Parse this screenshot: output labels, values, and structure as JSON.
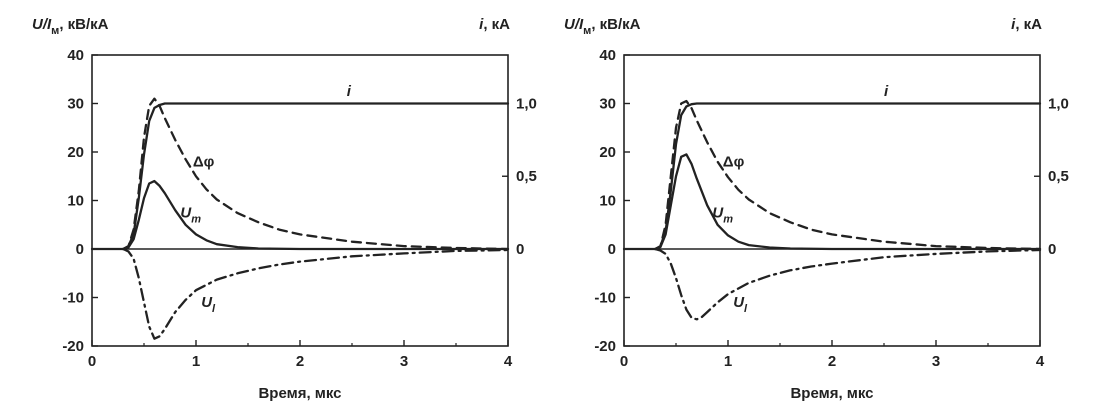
{
  "chart_data": [
    {
      "type": "line",
      "xlabel": "Время, мкс",
      "ylabel_left": {
        "main": "U/I",
        "sub": "м",
        "tail": ", кВ/кА"
      },
      "ylabel_right": {
        "main": "i",
        "tail": ", кА"
      },
      "xlim": [
        0,
        4
      ],
      "ylim_left": [
        -20,
        40
      ],
      "ylim_right": [
        -0.6667,
        1.3333
      ],
      "x_ticks": [
        "0",
        "1",
        "2",
        "3",
        "4"
      ],
      "y_ticks_left": [
        "40",
        "30",
        "20",
        "10",
        "0",
        "-10",
        "-20"
      ],
      "y_ticks_right": [
        "1,0",
        "0,5",
        "0"
      ],
      "grid": false,
      "series": [
        {
          "name": "i",
          "axis": "right",
          "style": "solid",
          "color": "#222222",
          "x": [
            0,
            0.3,
            0.35,
            0.4,
            0.45,
            0.5,
            0.55,
            0.6,
            0.65,
            0.7,
            0.8,
            0.9,
            1.0,
            4.0
          ],
          "y": [
            0,
            0,
            0.02,
            0.1,
            0.35,
            0.65,
            0.88,
            0.97,
            0.99,
            1.0,
            1.0,
            1.0,
            1.0,
            1.0
          ]
        },
        {
          "name": "Δφ",
          "axis": "left",
          "style": "dashed",
          "color": "#222222",
          "x": [
            0.3,
            0.35,
            0.4,
            0.45,
            0.5,
            0.55,
            0.6,
            0.65,
            0.7,
            0.8,
            0.9,
            1.0,
            1.1,
            1.2,
            1.4,
            1.6,
            1.8,
            2.0,
            2.5,
            3.0,
            3.5,
            4.0
          ],
          "y": [
            0,
            0.5,
            4,
            12,
            23,
            29.5,
            31,
            29.5,
            27,
            22.5,
            18.5,
            15,
            12.3,
            10.2,
            7.4,
            5.5,
            4,
            3,
            1.5,
            0.6,
            0.2,
            0
          ]
        },
        {
          "name": "U_т",
          "axis": "left",
          "style": "solid",
          "color": "#222222",
          "x": [
            0.3,
            0.35,
            0.4,
            0.45,
            0.5,
            0.55,
            0.6,
            0.65,
            0.7,
            0.8,
            0.9,
            1.0,
            1.1,
            1.2,
            1.4,
            1.6,
            2.0,
            4.0
          ],
          "y": [
            0,
            0.3,
            2,
            6,
            10.5,
            13.5,
            14,
            13,
            11.5,
            8,
            5,
            3,
            1.8,
            1,
            0.4,
            0.1,
            0,
            0
          ]
        },
        {
          "name": "U_l",
          "axis": "left",
          "style": "dashdot",
          "color": "#222222",
          "x": [
            0.3,
            0.35,
            0.4,
            0.45,
            0.5,
            0.55,
            0.6,
            0.65,
            0.7,
            0.8,
            0.9,
            1.0,
            1.2,
            1.4,
            1.6,
            1.8,
            2.0,
            2.5,
            3.0,
            3.5,
            4.0
          ],
          "y": [
            0,
            -0.5,
            -2,
            -6,
            -11,
            -16,
            -18.5,
            -18,
            -16.5,
            -13,
            -10.5,
            -8.5,
            -6.3,
            -5,
            -4,
            -3.2,
            -2.6,
            -1.5,
            -0.9,
            -0.4,
            -0.2
          ]
        }
      ],
      "labels": [
        {
          "text": "i",
          "x": 2.45,
          "y": 31.5
        },
        {
          "text": "Δφ",
          "x": 0.97,
          "y": 17
        },
        {
          "text": "U",
          "sub": "т",
          "x": 0.85,
          "y": 6.5
        },
        {
          "text": "U",
          "sub": "l",
          "x": 1.05,
          "y": -12
        }
      ]
    },
    {
      "type": "line",
      "xlabel": "Время, мкс",
      "ylabel_left": {
        "main": "U/I",
        "sub": "м",
        "tail": ", кВ/кА"
      },
      "ylabel_right": {
        "main": "i",
        "tail": ", кА"
      },
      "xlim": [
        0,
        4
      ],
      "ylim_left": [
        -20,
        40
      ],
      "ylim_right": [
        -0.6667,
        1.3333
      ],
      "x_ticks": [
        "0",
        "1",
        "2",
        "3",
        "4"
      ],
      "y_ticks_left": [
        "40",
        "30",
        "20",
        "10",
        "0",
        "-10",
        "-20"
      ],
      "y_ticks_right": [
        "1,0",
        "0,5",
        "0"
      ],
      "grid": false,
      "series": [
        {
          "name": "i",
          "axis": "right",
          "style": "solid",
          "color": "#222222",
          "x": [
            0,
            0.3,
            0.35,
            0.4,
            0.45,
            0.5,
            0.55,
            0.6,
            0.65,
            0.7,
            0.8,
            0.9,
            1.0,
            4.0
          ],
          "y": [
            0,
            0,
            0.02,
            0.12,
            0.4,
            0.72,
            0.92,
            0.98,
            0.995,
            1.0,
            1.0,
            1.0,
            1.0,
            1.0
          ]
        },
        {
          "name": "Δφ",
          "axis": "left",
          "style": "dashed",
          "color": "#222222",
          "x": [
            0.3,
            0.35,
            0.4,
            0.45,
            0.5,
            0.55,
            0.6,
            0.65,
            0.7,
            0.8,
            0.9,
            1.0,
            1.1,
            1.2,
            1.4,
            1.6,
            1.8,
            2.0,
            2.5,
            3.0,
            3.5,
            4.0
          ],
          "y": [
            0,
            0.5,
            5,
            15,
            25,
            30,
            30.5,
            29,
            26.5,
            22,
            18,
            14.8,
            12.2,
            10.2,
            7.4,
            5.5,
            4,
            3,
            1.5,
            0.6,
            0.2,
            0
          ]
        },
        {
          "name": "U_т",
          "axis": "left",
          "style": "solid",
          "color": "#222222",
          "x": [
            0.3,
            0.35,
            0.4,
            0.45,
            0.5,
            0.55,
            0.6,
            0.65,
            0.7,
            0.8,
            0.9,
            1.0,
            1.1,
            1.2,
            1.4,
            1.6,
            2.0,
            4.0
          ],
          "y": [
            0,
            0.4,
            3,
            9,
            15,
            19,
            19.5,
            17.5,
            14.5,
            9,
            5,
            2.8,
            1.5,
            0.8,
            0.3,
            0.1,
            0,
            0
          ]
        },
        {
          "name": "U_l",
          "axis": "left",
          "style": "dashdot",
          "color": "#222222",
          "x": [
            0.3,
            0.35,
            0.4,
            0.45,
            0.5,
            0.55,
            0.6,
            0.65,
            0.7,
            0.75,
            0.8,
            0.9,
            1.0,
            1.2,
            1.4,
            1.6,
            1.8,
            2.0,
            2.5,
            3.0,
            3.5,
            4.0
          ],
          "y": [
            0,
            -0.3,
            -1,
            -3,
            -6,
            -9.5,
            -12.5,
            -14.2,
            -14.5,
            -14,
            -13,
            -11,
            -9.3,
            -7,
            -5.5,
            -4.4,
            -3.6,
            -3,
            -1.7,
            -1,
            -0.5,
            -0.2
          ]
        }
      ],
      "labels": [
        {
          "text": "i",
          "x": 2.5,
          "y": 31.5
        },
        {
          "text": "Δφ",
          "x": 0.95,
          "y": 17
        },
        {
          "text": "U",
          "sub": "т",
          "x": 0.85,
          "y": 6.5
        },
        {
          "text": "U",
          "sub": "l",
          "x": 1.05,
          "y": -12
        }
      ]
    }
  ]
}
